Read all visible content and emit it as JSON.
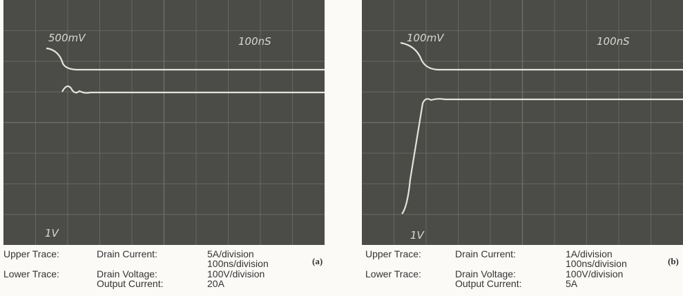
{
  "panels": [
    {
      "screen": {
        "top_left": "500mV",
        "top_right": "100nS",
        "bottom_left": "1V"
      },
      "caption": {
        "upper_label": "Upper Trace:",
        "upper_name": "Drain Current:",
        "upper_scale": "5A/division",
        "time_scale": "100ns/division",
        "lower_label": "Lower Trace:",
        "lower_name": "Drain Voltage:",
        "lower_scale": "100V/division",
        "extra_name": "Output Current:",
        "extra_value": "20A",
        "tag": "(a)"
      }
    },
    {
      "screen": {
        "top_left": "100mV",
        "top_right": "100nS",
        "bottom_left": "1V"
      },
      "caption": {
        "upper_label": "Upper Trace:",
        "upper_name": "Drain Current:",
        "upper_scale": "1A/division",
        "time_scale": "100ns/division",
        "lower_label": "Lower Trace:",
        "lower_name": "Drain Voltage:",
        "lower_scale": "100V/division",
        "extra_name": "Output Current:",
        "extra_value": "5A",
        "tag": "(b)"
      }
    }
  ]
}
